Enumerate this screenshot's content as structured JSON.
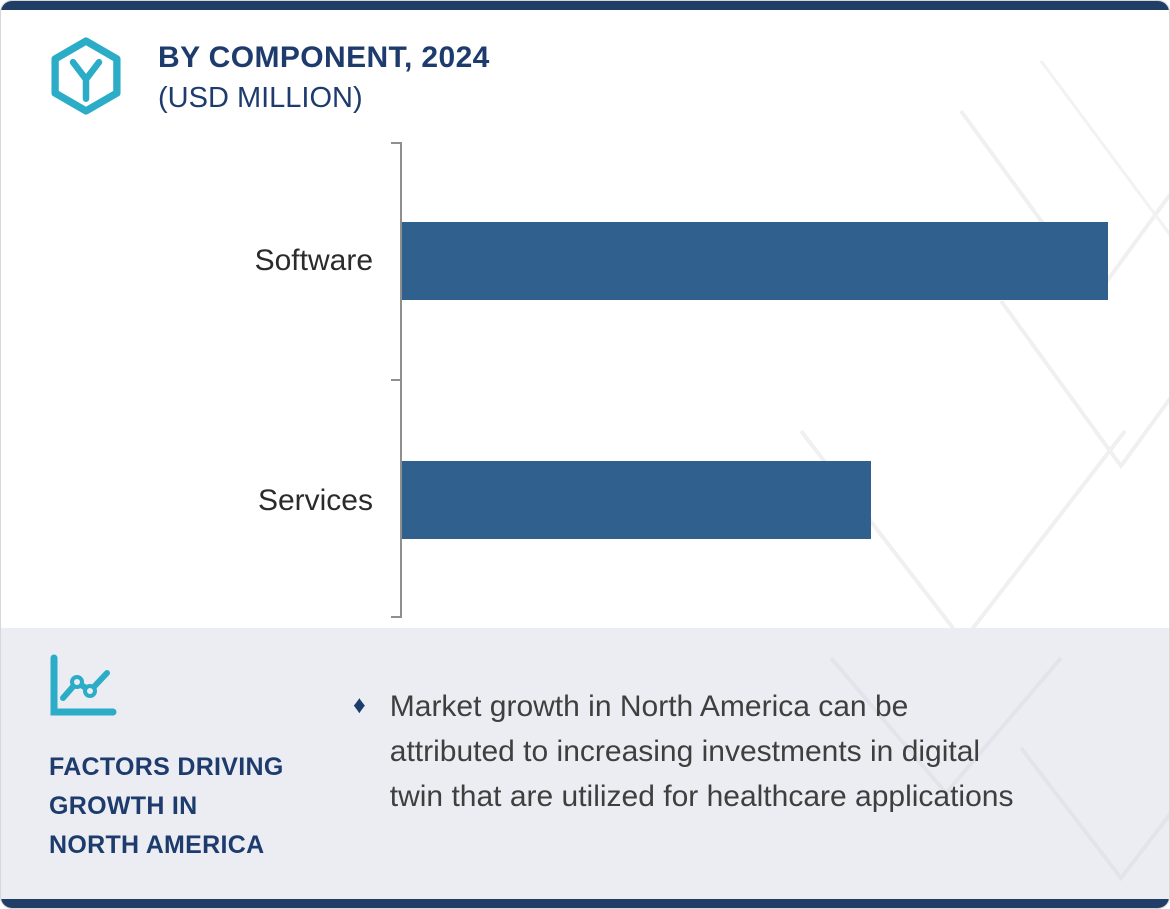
{
  "header": {
    "title_line1": "BY COMPONENT, 2024",
    "title_line2": "(USD MILLION)"
  },
  "chart_data": {
    "type": "bar",
    "orientation": "horizontal",
    "title": "BY COMPONENT, 2024 (USD MILLION)",
    "categories": [
      "Software",
      "Services"
    ],
    "values": [
      100,
      66.5
    ],
    "values_note": "Axis is unlabeled; values are relative bar lengths estimated from pixels (Software is approx 1.5x Services).",
    "xlim": [
      0,
      109
    ],
    "xlabel": "",
    "ylabel": "",
    "grid": false,
    "legend": false
  },
  "footer": {
    "heading_lines": [
      "FACTORS DRIVING",
      "GROWTH IN",
      "NORTH AMERICA"
    ],
    "bullet_char": "♦",
    "bullet_lines": [
      "Market growth in North America can be",
      "attributed to increasing investments in digital",
      "twin that are utilized for healthcare applications"
    ]
  },
  "icons": {
    "logo": "hexagon-y-logo-icon",
    "footer": "line-chart-icon",
    "bullet": "diamond-bullet-icon"
  },
  "colors": {
    "navy": "#1d3c6d",
    "teal": "#2bacc7",
    "bar_blue": "#2f608e",
    "panel_bg": "#ecedf2",
    "body_text": "#3f3f3f",
    "axis_gray": "#8f8f8f",
    "border_navy": "#203e66"
  }
}
